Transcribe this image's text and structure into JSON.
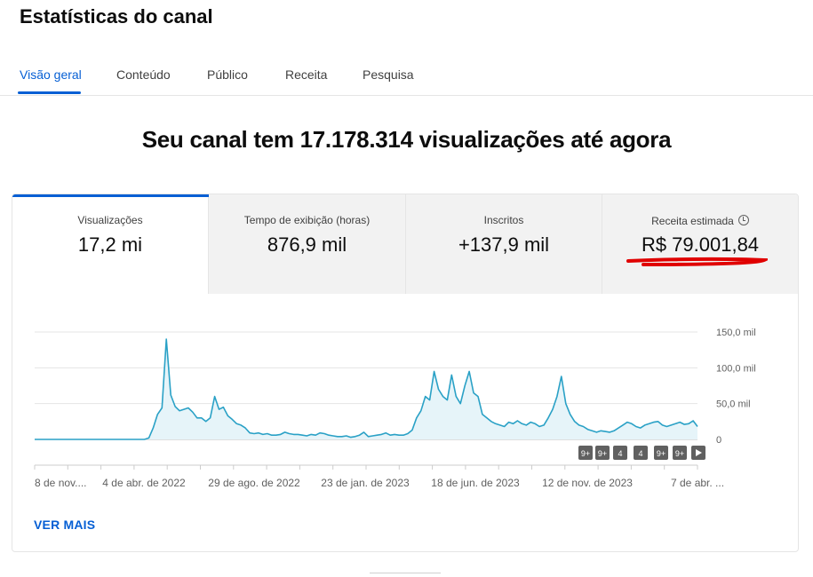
{
  "page": {
    "title": "Estatísticas do canal"
  },
  "tabs": [
    "Visão geral",
    "Conteúdo",
    "Público",
    "Receita",
    "Pesquisa"
  ],
  "headline": "Seu canal tem 17.178.314 visualizações até agora",
  "metrics": [
    {
      "label": "Visualizações",
      "value": "17,2 mi"
    },
    {
      "label": "Tempo de exibição (horas)",
      "value": "876,9 mil"
    },
    {
      "label": "Inscritos",
      "value": "+137,9 mil"
    },
    {
      "label": "Receita estimada",
      "value": "R$ 79.001,84"
    }
  ],
  "colors": {
    "accent": "#065fd4",
    "line": "#2aa1c6",
    "fill": "#e6f4f9",
    "highlight": "#e00000"
  },
  "icons": {
    "revenue_info": "clock-icon"
  },
  "chart_data": {
    "type": "area",
    "x_tick_labels": [
      "8 de nov....",
      "4 de abr. de 2022",
      "29 de ago. de 2022",
      "23 de jan. de 2023",
      "18 de jun. de 2023",
      "12 de nov. de 2023",
      "7 de abr. ..."
    ],
    "y_tick_labels": [
      "150,0 mil",
      "100,0 mil",
      "50,0 mil",
      "0"
    ],
    "ylim": [
      0,
      150000
    ],
    "grid": true,
    "series": [
      {
        "values": [
          0,
          0,
          0,
          0,
          0,
          0,
          0,
          0,
          0,
          0,
          0,
          0,
          0,
          0,
          0,
          0,
          0,
          0,
          0,
          0,
          0,
          0,
          0,
          0,
          0,
          0,
          2000,
          16000,
          35000,
          44000,
          140000,
          62000,
          46000,
          40000,
          42000,
          44000,
          38000,
          30000,
          30000,
          25000,
          30000,
          60000,
          42000,
          45000,
          33000,
          28000,
          22000,
          20000,
          16000,
          9000,
          8000,
          9000,
          7000,
          8000,
          6000,
          6000,
          7000,
          10000,
          8000,
          7000,
          7000,
          6000,
          5000,
          7000,
          6000,
          9000,
          8000,
          6000,
          5000,
          4000,
          4000,
          5000,
          3000,
          4000,
          6000,
          10000,
          4000,
          5000,
          6000,
          7000,
          9000,
          6000,
          7000,
          6000,
          6000,
          8000,
          13000,
          30000,
          40000,
          60000,
          55000,
          95000,
          70000,
          60000,
          55000,
          90000,
          60000,
          50000,
          75000,
          95000,
          65000,
          60000,
          35000,
          30000,
          25000,
          22000,
          20000,
          18000,
          24000,
          22000,
          26000,
          22000,
          20000,
          24000,
          22000,
          18000,
          20000,
          30000,
          42000,
          60000,
          88000,
          50000,
          35000,
          25000,
          20000,
          18000,
          14000,
          12000,
          10000,
          12000,
          11000,
          10000,
          12000,
          16000,
          20000,
          24000,
          22000,
          18000,
          16000,
          20000,
          22000,
          24000,
          25000,
          20000,
          18000,
          20000,
          22000,
          24000,
          21000,
          22000,
          26000,
          18000
        ]
      }
    ],
    "annotation_badges": [
      "9+",
      "9+",
      "4",
      "4",
      "9+",
      "9+"
    ]
  },
  "links": {
    "ver_mais": "VER MAIS"
  }
}
